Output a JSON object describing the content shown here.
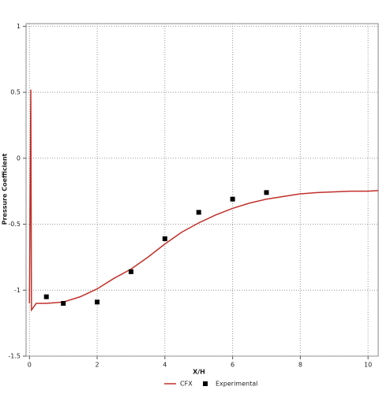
{
  "chart_data": {
    "type": "line",
    "xlabel": "X/H",
    "ylabel": "Pressure Coefficient",
    "xlim": [
      -0.1,
      10.3
    ],
    "ylim": [
      -1.5,
      1.02
    ],
    "xticks": [
      0,
      2,
      4,
      6,
      8,
      10
    ],
    "yticks": [
      1,
      0.5,
      0,
      -0.5,
      -1,
      -1.5
    ],
    "grid": true,
    "legend": "bottom",
    "series": [
      {
        "name": "CFX",
        "color": "#c0302a",
        "kind": "line",
        "x": [
          0,
          0.04,
          0.06,
          0.2,
          0.5,
          1,
          1.5,
          2,
          2.5,
          3,
          3.5,
          4,
          4.5,
          5,
          5.5,
          6,
          6.5,
          7,
          7.5,
          8,
          8.5,
          9,
          9.5,
          10,
          10.3
        ],
        "values": [
          -1.1,
          0.52,
          -1.15,
          -1.1,
          -1.1,
          -1.09,
          -1.05,
          -0.99,
          -0.91,
          -0.84,
          -0.75,
          -0.65,
          -0.56,
          -0.49,
          -0.43,
          -0.38,
          -0.34,
          -0.31,
          -0.29,
          -0.27,
          -0.26,
          -0.255,
          -0.25,
          -0.25,
          -0.245
        ]
      },
      {
        "name": "Experimental",
        "color": "#000000",
        "kind": "marker",
        "x": [
          0.5,
          1,
          2,
          3,
          4,
          5,
          6,
          7
        ],
        "values": [
          -1.05,
          -1.1,
          -1.09,
          -0.86,
          -0.61,
          -0.41,
          -0.31,
          -0.26
        ]
      }
    ]
  }
}
